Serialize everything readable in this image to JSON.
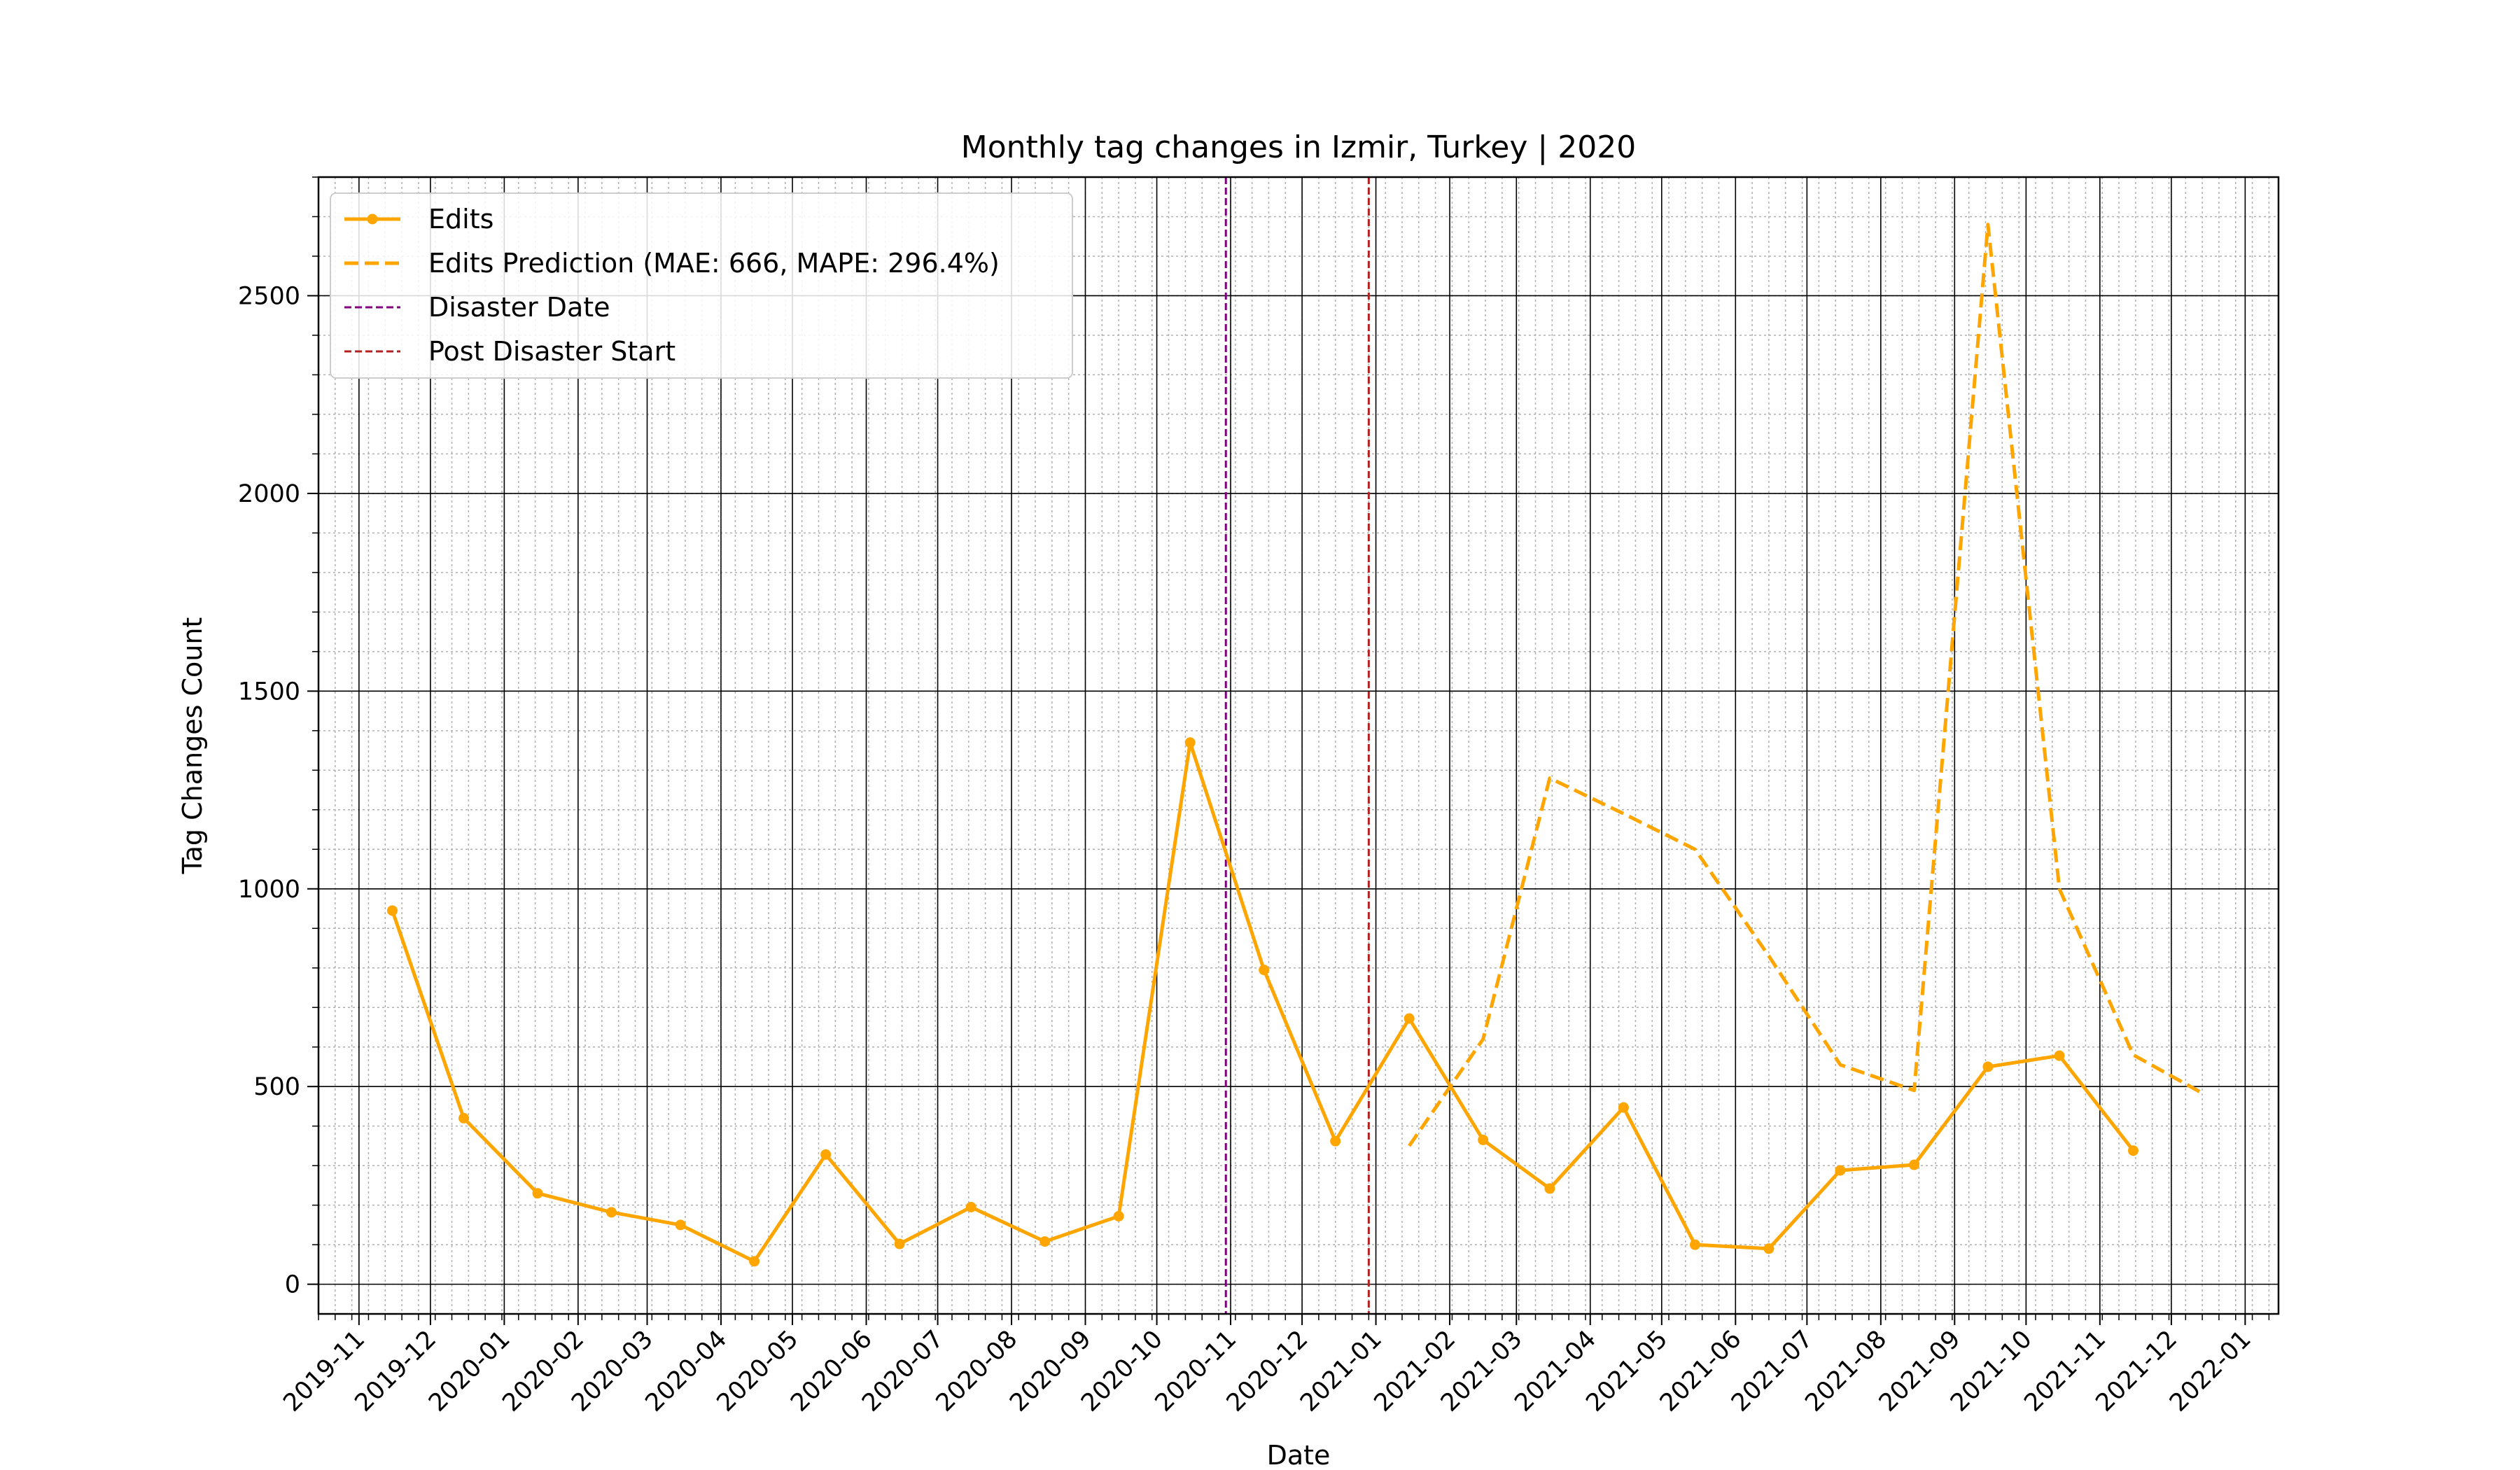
{
  "chart_data": {
    "type": "line",
    "title": "Monthly tag changes in Izmir, Turkey | 2020",
    "xlabel": "Date",
    "ylabel": "Tag Changes Count",
    "xlim": [
      "2019-10-15",
      "2022-01-15"
    ],
    "ylim": [
      -75,
      2800
    ],
    "yticks": [
      0,
      500,
      1000,
      1500,
      2000,
      2500
    ],
    "xticks": [
      "2019-11",
      "2019-12",
      "2020-01",
      "2020-02",
      "2020-03",
      "2020-04",
      "2020-05",
      "2020-06",
      "2020-07",
      "2020-08",
      "2020-09",
      "2020-10",
      "2020-11",
      "2020-12",
      "2021-01",
      "2021-02",
      "2021-03",
      "2021-04",
      "2021-05",
      "2021-06",
      "2021-07",
      "2021-08",
      "2021-09",
      "2021-10",
      "2021-11",
      "2021-12",
      "2022-01"
    ],
    "grid": true,
    "legend_position": "top-left",
    "series": [
      {
        "name": "Edits",
        "style": "solid-markers",
        "color": "#FFA500",
        "points": [
          [
            "2019-11-15",
            945
          ],
          [
            "2019-12-15",
            420
          ],
          [
            "2020-01-15",
            230
          ],
          [
            "2020-02-15",
            182
          ],
          [
            "2020-03-15",
            150
          ],
          [
            "2020-04-15",
            58
          ],
          [
            "2020-05-15",
            328
          ],
          [
            "2020-06-15",
            102
          ],
          [
            "2020-07-15",
            195
          ],
          [
            "2020-08-15",
            108
          ],
          [
            "2020-09-15",
            172
          ],
          [
            "2020-10-15",
            1370
          ],
          [
            "2020-11-15",
            795
          ],
          [
            "2020-12-15",
            362
          ],
          [
            "2021-01-15",
            672
          ],
          [
            "2021-02-15",
            365
          ],
          [
            "2021-03-15",
            242
          ],
          [
            "2021-04-15",
            447
          ],
          [
            "2021-05-15",
            100
          ],
          [
            "2021-06-15",
            90
          ],
          [
            "2021-07-15",
            288
          ],
          [
            "2021-08-15",
            302
          ],
          [
            "2021-09-15",
            550
          ],
          [
            "2021-10-15",
            578
          ],
          [
            "2021-11-15",
            338
          ]
        ]
      },
      {
        "name": "Edits Prediction (MAE: 666, MAPE: 296.4%)",
        "style": "dashed",
        "color": "#FFA500",
        "points": [
          [
            "2021-01-15",
            350
          ],
          [
            "2021-02-15",
            620
          ],
          [
            "2021-03-15",
            1280
          ],
          [
            "2021-04-15",
            1190
          ],
          [
            "2021-05-15",
            1100
          ],
          [
            "2021-06-15",
            830
          ],
          [
            "2021-07-15",
            555
          ],
          [
            "2021-08-15",
            490
          ],
          [
            "2021-09-15",
            2680
          ],
          [
            "2021-10-15",
            1000
          ],
          [
            "2021-11-15",
            580
          ],
          [
            "2021-12-15",
            480
          ]
        ]
      }
    ],
    "vlines": [
      {
        "name": "Disaster Date",
        "date": "2020-10-30",
        "color": "#800080",
        "style": "dashed"
      },
      {
        "name": "Post Disaster Start",
        "date": "2020-12-29",
        "color": "#B22222",
        "style": "dashed"
      }
    ]
  }
}
